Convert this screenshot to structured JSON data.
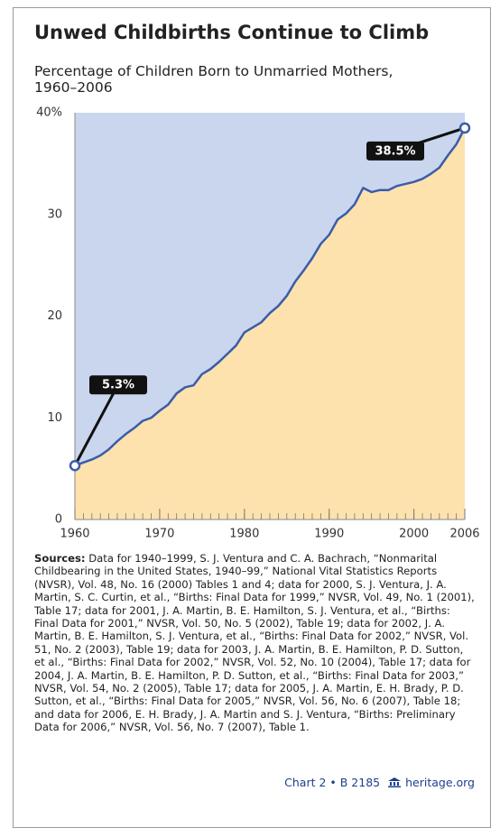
{
  "chart_data": {
    "type": "area",
    "title": "Unwed Childbirths Continue to Climb",
    "subtitle": "Percentage of Children Born to Unmarried Mothers, 1960–2006",
    "x": [
      1960,
      1961,
      1962,
      1963,
      1964,
      1965,
      1966,
      1967,
      1968,
      1969,
      1970,
      1971,
      1972,
      1973,
      1974,
      1975,
      1976,
      1977,
      1978,
      1979,
      1980,
      1981,
      1982,
      1983,
      1984,
      1985,
      1986,
      1987,
      1988,
      1989,
      1990,
      1991,
      1992,
      1993,
      1994,
      1995,
      1996,
      1997,
      1998,
      1999,
      2000,
      2001,
      2002,
      2003,
      2004,
      2005,
      2006
    ],
    "values": [
      5.3,
      5.6,
      5.9,
      6.3,
      6.9,
      7.7,
      8.4,
      9.0,
      9.7,
      10.0,
      10.7,
      11.3,
      12.4,
      13.0,
      13.2,
      14.3,
      14.8,
      15.5,
      16.3,
      17.1,
      18.4,
      18.9,
      19.4,
      20.3,
      21.0,
      22.0,
      23.4,
      24.5,
      25.7,
      27.1,
      28.0,
      29.5,
      30.1,
      31.0,
      32.6,
      32.2,
      32.4,
      32.4,
      32.8,
      33.0,
      33.2,
      33.5,
      34.0,
      34.6,
      35.8,
      36.9,
      38.5
    ],
    "value_labels": [
      "5.3%",
      null,
      null,
      null,
      null,
      null,
      null,
      null,
      null,
      null,
      null,
      null,
      null,
      null,
      null,
      null,
      null,
      null,
      null,
      null,
      null,
      null,
      null,
      null,
      null,
      null,
      null,
      null,
      null,
      null,
      null,
      null,
      null,
      null,
      null,
      null,
      null,
      null,
      null,
      null,
      null,
      null,
      null,
      null,
      null,
      null,
      "38.5%"
    ],
    "xlim": [
      1960,
      2006
    ],
    "xticks": [
      1960,
      1970,
      1980,
      1990,
      2000,
      2006
    ],
    "ylim": [
      0,
      40
    ],
    "yticks": [
      0,
      10,
      20,
      30,
      {
        "value": 40,
        "label": "40%"
      }
    ],
    "line_color": "#3a5caa",
    "fill_color": "#fde2ad",
    "background_color": "#c9d6ee",
    "source_label": "Sources:",
    "source": "Data for 1940–1999, S. J. Ventura and C. A. Bachrach, “Nonmarital Childbearing in the United States, 1940–99,” National Vital Statistics Reports (NVSR), Vol. 48, No. 16 (2000) Tables 1 and 4; data for 2000, S. J. Ventura, J. A. Martin, S. C. Curtin, et al., “Births: Final Data for 1999,” NVSR, Vol. 49, No. 1 (2001), Table 17; data for 2001, J. A. Martin, B. E. Hamilton, S. J. Ventura, et al., “Births: Final Data for 2001,” NVSR, Vol. 50, No. 5 (2002), Table 19; data for 2002, J. A. Martin, B. E. Hamilton, S. J. Ventura, et al., “Births: Final Data for 2002,” NVSR, Vol. 51, No. 2 (2003), Table 19; data for 2003, J. A. Martin, B. E. Hamilton, P. D. Sutton, et al., “Births: Final Data for 2002,” NVSR, Vol. 52, No. 10 (2004), Table 17; data for 2004, J. A. Martin, B. E. Hamilton, P. D. Sutton, et al., “Births: Final Data for 2003,” NVSR, Vol. 54, No. 2 (2005), Table 17; data for 2005, J. A. Martin, E. H. Brady, P. D. Sutton, et al., “Births: Final Data for 2005,” NVSR, Vol. 56, No. 6 (2007), Table 18; and data for 2006, E. H. Brady, J. A. Martin and S. J. Ventura, “Births: Preliminary Data for 2006,” NVSR, Vol. 56, No. 7 (2007), Table 1.",
    "chart_id": "Chart 2 • B 2185",
    "website": "heritage.org"
  }
}
